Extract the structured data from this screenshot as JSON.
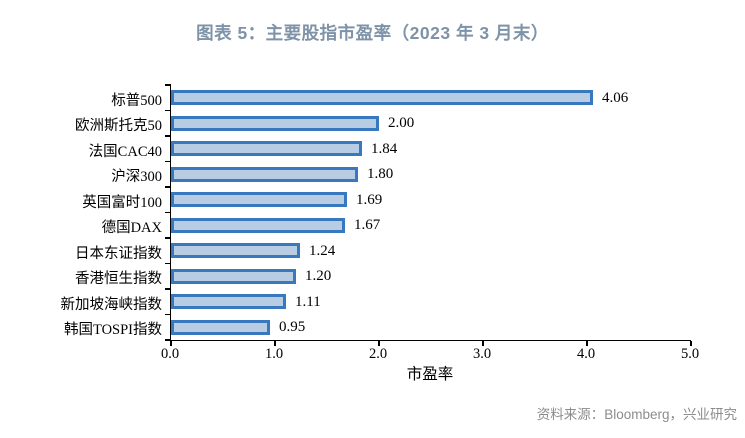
{
  "chart_data": {
    "type": "bar",
    "orientation": "horizontal",
    "title": "图表 5：主要股指市盈率（2023 年 3 月末）",
    "categories": [
      "标普500",
      "欧洲斯托克50",
      "法国CAC40",
      "沪深300",
      "英国富时100",
      "德国DAX",
      "日本东证指数",
      "香港恒生指数",
      "新加坡海峡指数",
      "韩国TOSPI指数"
    ],
    "values": [
      4.06,
      2.0,
      1.84,
      1.8,
      1.69,
      1.67,
      1.24,
      1.2,
      1.11,
      0.95
    ],
    "value_labels": [
      "4.06",
      "2.00",
      "1.84",
      "1.80",
      "1.69",
      "1.67",
      "1.24",
      "1.20",
      "1.11",
      "0.95"
    ],
    "xlabel": "市盈率",
    "xlim": [
      0.0,
      5.0
    ],
    "x_ticks": [
      "0.0",
      "1.0",
      "2.0",
      "3.0",
      "4.0",
      "5.0"
    ],
    "grid": "off",
    "legend": "none",
    "colors": {
      "bar_fill": "#b8cce4",
      "bar_border": "#3778be",
      "title_text": "#7e92a8",
      "axis_line": "#000000",
      "source_text": "#8c8c8c"
    }
  },
  "source_note": "资料来源：Bloomberg，兴业研究"
}
